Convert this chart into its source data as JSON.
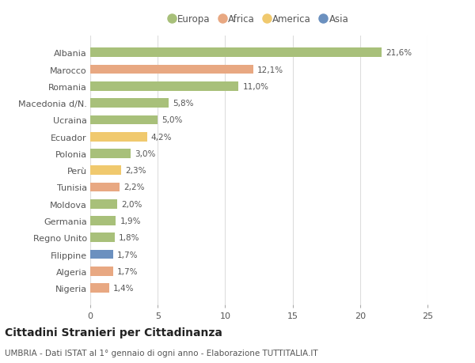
{
  "countries": [
    "Albania",
    "Marocco",
    "Romania",
    "Macedonia d/N.",
    "Ucraina",
    "Ecuador",
    "Polonia",
    "Perù",
    "Tunisia",
    "Moldova",
    "Germania",
    "Regno Unito",
    "Filippine",
    "Algeria",
    "Nigeria"
  ],
  "values": [
    21.6,
    12.1,
    11.0,
    5.8,
    5.0,
    4.2,
    3.0,
    2.3,
    2.2,
    2.0,
    1.9,
    1.8,
    1.7,
    1.7,
    1.4
  ],
  "labels": [
    "21,6%",
    "12,1%",
    "11,0%",
    "5,8%",
    "5,0%",
    "4,2%",
    "3,0%",
    "2,3%",
    "2,2%",
    "2,0%",
    "1,9%",
    "1,8%",
    "1,7%",
    "1,7%",
    "1,4%"
  ],
  "continents": [
    "Europa",
    "Africa",
    "Europa",
    "Europa",
    "Europa",
    "America",
    "Europa",
    "America",
    "Africa",
    "Europa",
    "Europa",
    "Europa",
    "Asia",
    "Africa",
    "Africa"
  ],
  "colors": {
    "Europa": "#a8c07a",
    "Africa": "#e8a882",
    "America": "#f0c96e",
    "Asia": "#6b90bf"
  },
  "legend_order": [
    "Europa",
    "Africa",
    "America",
    "Asia"
  ],
  "title": "Cittadini Stranieri per Cittadinanza",
  "subtitle": "UMBRIA - Dati ISTAT al 1° gennaio di ogni anno - Elaborazione TUTTITALIA.IT",
  "xlim": [
    0,
    25
  ],
  "xticks": [
    0,
    5,
    10,
    15,
    20,
    25
  ],
  "background_color": "#ffffff",
  "grid_color": "#dddddd",
  "bar_height": 0.55
}
